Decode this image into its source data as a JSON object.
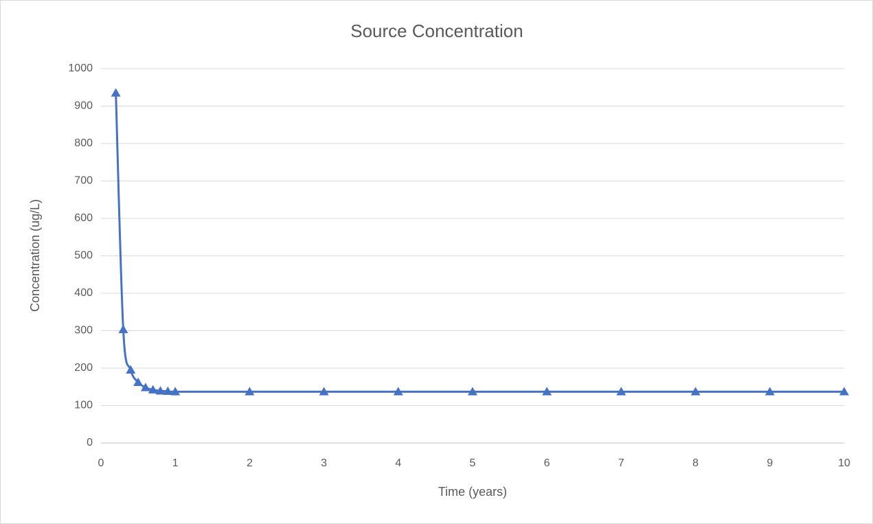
{
  "chart_data": {
    "type": "line",
    "smooth": true,
    "title": "Source Concentration",
    "x_label": "Time (years)",
    "y_label": "Concentration (ug/L)",
    "x": [
      0.2,
      0.3,
      0.4,
      0.5,
      0.6,
      0.7,
      0.8,
      0.9,
      1,
      2,
      3,
      4,
      5,
      6,
      7,
      8,
      9,
      10
    ],
    "series": [
      {
        "name": "Concentration",
        "color": "#4472c4",
        "marker": "triangle",
        "values": [
          935,
          303,
          195,
          162,
          148,
          142,
          139,
          138,
          137,
          137,
          137,
          137,
          137,
          137,
          137,
          137,
          137,
          137
        ]
      }
    ],
    "xlim": [
      0,
      10
    ],
    "xticks": [
      0,
      1,
      2,
      3,
      4,
      5,
      6,
      7,
      8,
      9,
      10
    ],
    "ylim": [
      0,
      1000
    ],
    "yticks": [
      0,
      100,
      200,
      300,
      400,
      500,
      600,
      700,
      800,
      900,
      1000
    ],
    "grid": true
  }
}
